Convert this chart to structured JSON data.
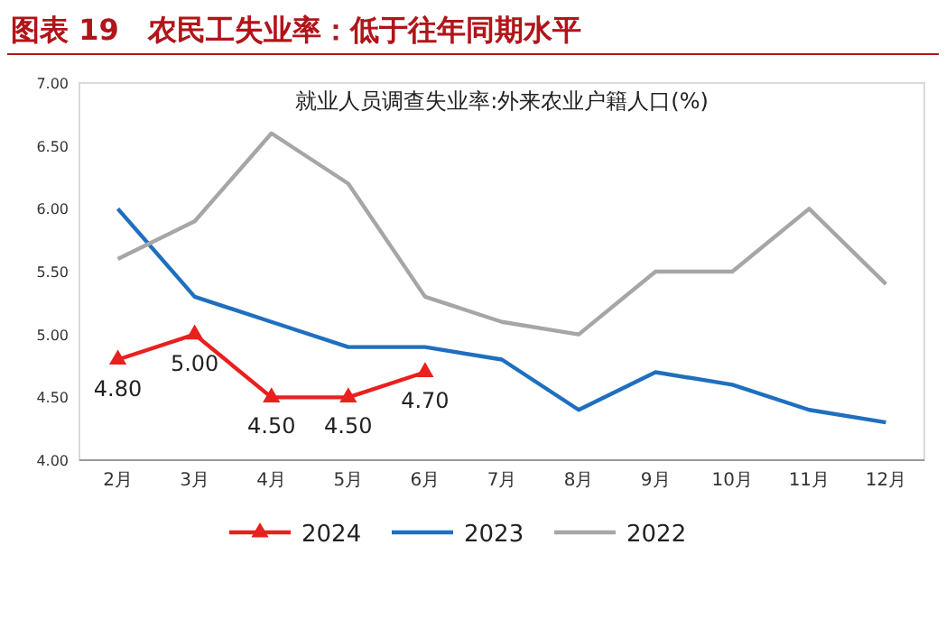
{
  "chart_data": {
    "type": "line",
    "title": "图表 19　农民工失业率：低于往年同期水平",
    "subtitle": "就业人员调查失业率:外来农业户籍人口(%)",
    "categories": [
      "2月",
      "3月",
      "4月",
      "5月",
      "6月",
      "7月",
      "8月",
      "9月",
      "10月",
      "11月",
      "12月"
    ],
    "ylim": [
      4,
      7
    ],
    "yticks": [
      {
        "value": 4,
        "label": "4.00"
      },
      {
        "value": 4.5,
        "label": "4.50"
      },
      {
        "value": 5,
        "label": "5.00"
      },
      {
        "value": 5.5,
        "label": "5.50"
      },
      {
        "value": 6,
        "label": "6.00"
      },
      {
        "value": 6.5,
        "label": "6.50"
      },
      {
        "value": 7,
        "label": "7.00"
      }
    ],
    "grid": false,
    "legend": "bottom",
    "series": [
      {
        "name": "2024",
        "color": "#e8201e",
        "marker": "triangle",
        "values": [
          4.8,
          5.0,
          4.5,
          4.5,
          4.7,
          null,
          null,
          null,
          null,
          null,
          null
        ],
        "value_labels": [
          "4.80",
          "5.00",
          "4.50",
          "4.50",
          "4.70",
          null,
          null,
          null,
          null,
          null,
          null
        ]
      },
      {
        "name": "2023",
        "color": "#1f6fc0",
        "marker": "none",
        "values": [
          6.0,
          5.3,
          5.1,
          4.9,
          4.9,
          4.8,
          4.4,
          4.7,
          4.6,
          4.4,
          4.3
        ]
      },
      {
        "name": "2022",
        "color": "#a6a6a6",
        "marker": "none",
        "values": [
          5.6,
          5.9,
          6.6,
          6.2,
          5.3,
          5.1,
          5.0,
          5.5,
          5.5,
          6.0,
          5.4
        ]
      }
    ]
  }
}
